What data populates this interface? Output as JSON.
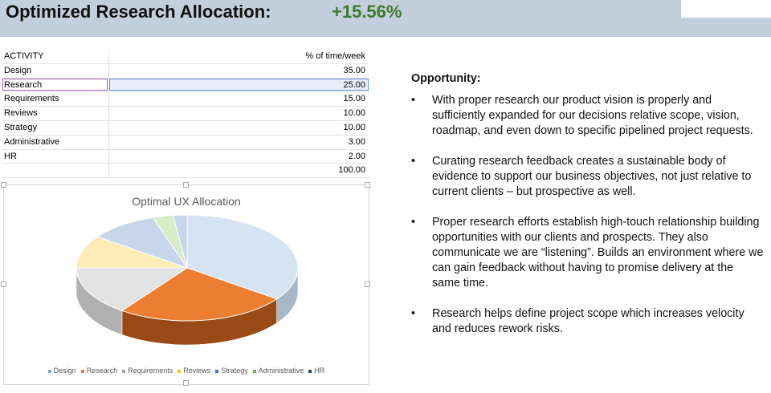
{
  "header": {
    "title": "Optimized Research Allocation:",
    "value": "+15.56%"
  },
  "sheet": {
    "col1_header": "ACTIVITY",
    "col2_header": "% of time/week",
    "rows": [
      {
        "activity": "Design",
        "value": "35.00"
      },
      {
        "activity": "Research",
        "value": "25.00"
      },
      {
        "activity": "Requirements",
        "value": "15.00"
      },
      {
        "activity": "Reviews",
        "value": "10.00"
      },
      {
        "activity": "Strategy",
        "value": "10.00"
      },
      {
        "activity": "Administrative",
        "value": "3.00"
      },
      {
        "activity": "HR",
        "value": "2.00"
      }
    ],
    "total": "100.00"
  },
  "chart_data": {
    "type": "pie",
    "title": "Optimal UX Allocation",
    "categories": [
      "Design",
      "Research",
      "Requirements",
      "Reviews",
      "Strategy",
      "Administrative",
      "HR"
    ],
    "values": [
      35,
      25,
      15,
      10,
      10,
      3,
      2
    ],
    "colors": [
      "#d6e3f3",
      "#ed7d31",
      "#e3e3e3",
      "#fdecb5",
      "#c8d6ec",
      "#d8ecc8",
      "#c6d7ec"
    ],
    "dark_colors": [
      "#a9b8c9",
      "#9a4a16",
      "#b0b0b0",
      "#c8b47a",
      "#97a7c0",
      "#9fb890",
      "#97a7c0"
    ],
    "legend_colors": [
      "#7fa6d8",
      "#ed7d31",
      "#a5a5a5",
      "#ffc000",
      "#4472c4",
      "#70ad47",
      "#264478"
    ],
    "legend_position": "bottom"
  },
  "opportunity": {
    "heading": "Opportunity:",
    "bullet_mark": "•",
    "bullets": [
      "With proper research our product vision is properly and sufficiently expanded for our decisions relative scope, vision, roadmap, and even down to specific pipelined project requests.",
      "Curating research feedback creates a sustainable body of evidence to support our business objectives, not just relative to current clients – but prospective as well.",
      "Proper research efforts establish high-touch relationship building opportunities with our clients and prospects. They also communicate we are “listening”.  Builds an environment where we can gain feedback without having to promise delivery at the same time.",
      "Research helps define project scope which increases velocity and reduces rework risks."
    ]
  }
}
